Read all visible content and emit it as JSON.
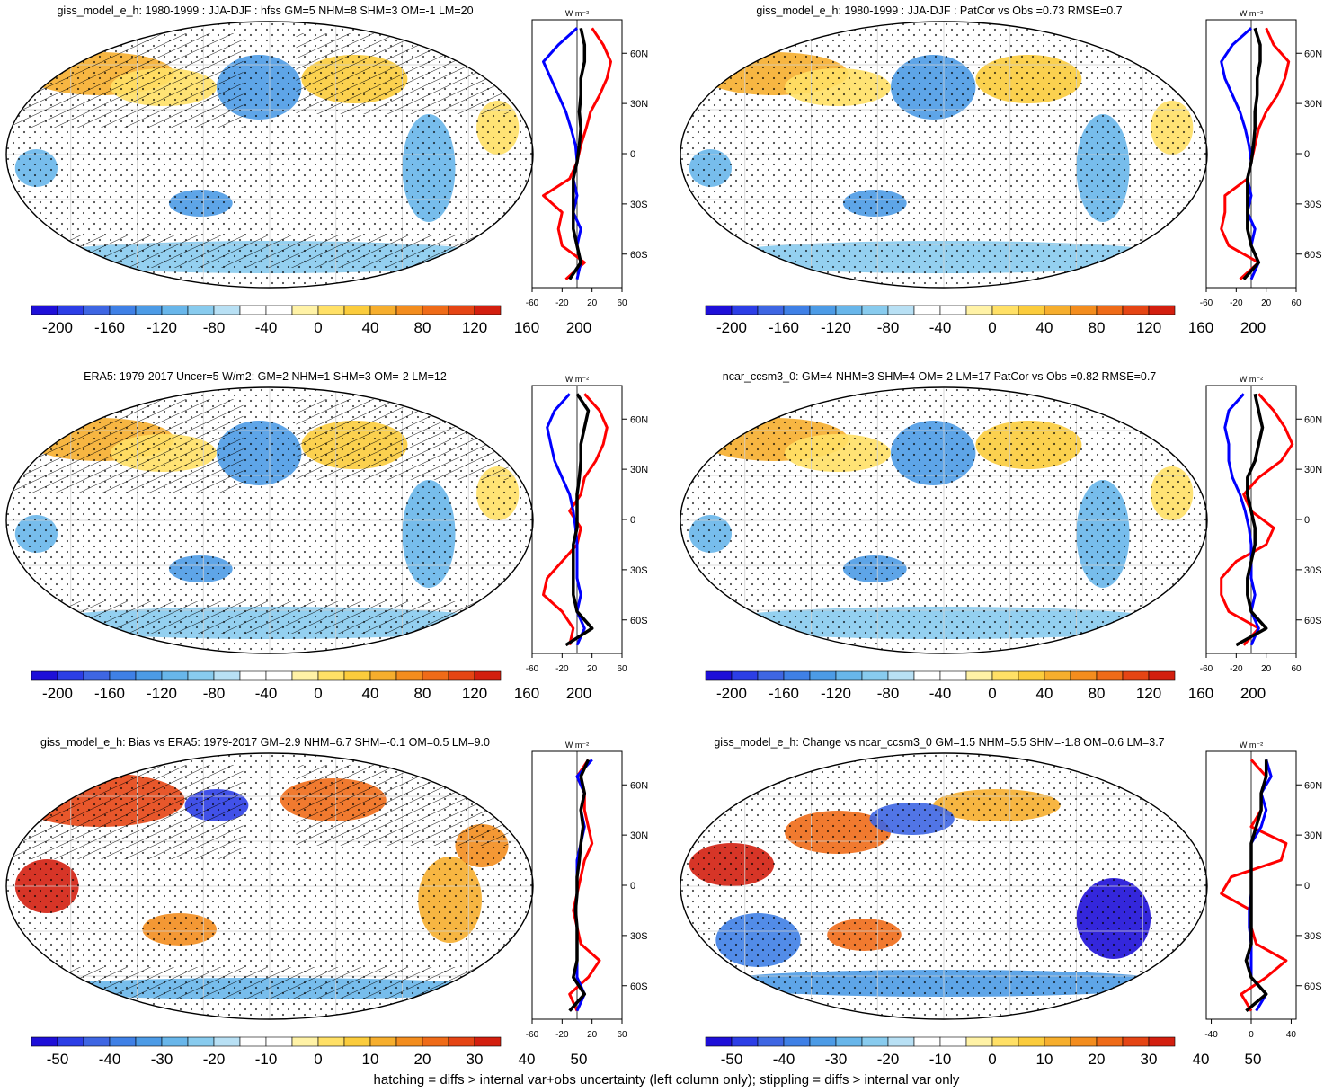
{
  "footer": "hatching = diffs > internal var+obs uncertainty (left column only); stippling = diffs > internal var only",
  "colorbar_colors": [
    "#1e0fd8",
    "#2c3ee6",
    "#3e66e3",
    "#3f80e6",
    "#4c9be6",
    "#68b6ea",
    "#88cbee",
    "#b8e0f4",
    "#ffffff",
    "#ffffff",
    "#fff2a6",
    "#ffe066",
    "#fbcc3c",
    "#f6ae2d",
    "#f38d1e",
    "#ef6b18",
    "#e54514",
    "#d31f0f"
  ],
  "profile_x_ticks": [
    "-60",
    "-20",
    "20",
    "60"
  ],
  "profile_x_ticks_alt": [
    "-40",
    "0",
    "40"
  ],
  "lat_ticks": [
    "60N",
    "30N",
    "0",
    "30S",
    "60S"
  ],
  "panels": [
    {
      "id": "a",
      "title": "giss_model_e_h: 1980-1999 : JJA-DJF : hfss GM=5 NHM=8 SHM=3 OM=-1 LM=20",
      "colorbar_labels": [
        "-200",
        "-160",
        "-120",
        "-80",
        "-40",
        "0",
        "40",
        "80",
        "120",
        "160",
        "200"
      ],
      "profile_unit": "W m⁻²",
      "hatching": true
    },
    {
      "id": "b",
      "title": "giss_model_e_h: 1980-1999 : JJA-DJF : PatCor vs Obs =0.73 RMSE=0.7",
      "colorbar_labels": [
        "-200",
        "-160",
        "-120",
        "-80",
        "-40",
        "0",
        "40",
        "80",
        "120",
        "160",
        "200"
      ],
      "profile_unit": "W m⁻²",
      "hatching": false
    },
    {
      "id": "c",
      "title": "ERA5: 1979-2017 Uncer=5 W/m2: GM=2 NHM=1 SHM=3 OM=-2 LM=12",
      "colorbar_labels": [
        "-200",
        "-160",
        "-120",
        "-80",
        "-40",
        "0",
        "40",
        "80",
        "120",
        "160",
        "200"
      ],
      "profile_unit": "W m⁻²",
      "hatching": true
    },
    {
      "id": "d",
      "title": "ncar_ccsm3_0: GM=4 NHM=3 SHM=4 OM=-2 LM=17 PatCor vs Obs =0.82 RMSE=0.7",
      "colorbar_labels": [
        "-200",
        "-160",
        "-120",
        "-80",
        "-40",
        "0",
        "40",
        "80",
        "120",
        "160",
        "200"
      ],
      "profile_unit": "W m⁻²",
      "hatching": false
    },
    {
      "id": "e",
      "title": "giss_model_e_h: Bias vs ERA5: 1979-2017 GM=2.9 NHM=6.7 SHM=-0.1 OM=0.5 LM=9.0",
      "colorbar_labels": [
        "-50",
        "-40",
        "-30",
        "-20",
        "-10",
        "0",
        "10",
        "20",
        "30",
        "40",
        "50"
      ],
      "profile_unit": "W m⁻²",
      "hatching": true
    },
    {
      "id": "f",
      "title": "giss_model_e_h: Change vs ncar_ccsm3_0 GM=1.5 NHM=5.5 SHM=-1.8 OM=0.6 LM=3.7",
      "colorbar_labels": [
        "-50",
        "-40",
        "-30",
        "-20",
        "-10",
        "0",
        "10",
        "20",
        "30",
        "40",
        "50"
      ],
      "profile_unit": "W m⁻²",
      "hatching": false
    }
  ],
  "chart_data": [
    {
      "type": "line",
      "panel": "a",
      "x_axis": "W m-2",
      "xlim": [
        -60,
        60
      ],
      "y_axis": "latitude",
      "ylim": [
        -80,
        80
      ],
      "lat": [
        -75,
        -65,
        -55,
        -45,
        -35,
        -25,
        -15,
        -5,
        5,
        15,
        25,
        35,
        45,
        55,
        65,
        75
      ],
      "series": [
        {
          "color": "#ff0000",
          "values": [
            -15,
            10,
            -20,
            -25,
            -20,
            -45,
            -10,
            0,
            5,
            12,
            18,
            30,
            40,
            45,
            35,
            20
          ]
        },
        {
          "color": "#0000ff",
          "values": [
            0,
            5,
            0,
            5,
            -5,
            0,
            -5,
            0,
            -2,
            -8,
            -15,
            -25,
            -35,
            -45,
            -25,
            0
          ]
        },
        {
          "color": "#000000",
          "values": [
            -10,
            5,
            0,
            -5,
            -5,
            -5,
            -5,
            0,
            3,
            5,
            3,
            5,
            5,
            10,
            10,
            5
          ]
        }
      ]
    },
    {
      "type": "line",
      "panel": "b",
      "x_axis": "W m-2",
      "xlim": [
        -60,
        60
      ],
      "y_axis": "latitude",
      "ylim": [
        -80,
        80
      ],
      "lat": [
        -75,
        -65,
        -55,
        -45,
        -35,
        -25,
        -15,
        -5,
        5,
        15,
        25,
        35,
        45,
        55,
        65,
        75
      ],
      "series": [
        {
          "color": "#ff0000",
          "values": [
            -15,
            10,
            -30,
            -40,
            -35,
            -35,
            -5,
            0,
            5,
            10,
            20,
            35,
            45,
            50,
            30,
            20
          ]
        },
        {
          "color": "#0000ff",
          "values": [
            0,
            10,
            0,
            5,
            -5,
            0,
            -5,
            0,
            -3,
            -8,
            -15,
            -25,
            -35,
            -40,
            -25,
            0
          ]
        },
        {
          "color": "#000000",
          "values": [
            -10,
            10,
            0,
            -5,
            -5,
            -5,
            -5,
            0,
            3,
            5,
            5,
            8,
            8,
            12,
            12,
            5
          ]
        }
      ]
    },
    {
      "type": "line",
      "panel": "c",
      "x_axis": "W m-2",
      "xlim": [
        -60,
        60
      ],
      "y_axis": "latitude",
      "ylim": [
        -80,
        80
      ],
      "lat": [
        -75,
        -65,
        -55,
        -45,
        -35,
        -25,
        -15,
        -5,
        5,
        15,
        25,
        35,
        45,
        55,
        65,
        75
      ],
      "series": [
        {
          "color": "#ff0000",
          "values": [
            -10,
            -5,
            -20,
            -45,
            -40,
            -20,
            0,
            5,
            -10,
            5,
            10,
            25,
            35,
            40,
            30,
            10
          ]
        },
        {
          "color": "#0000ff",
          "values": [
            0,
            10,
            0,
            5,
            0,
            0,
            0,
            -2,
            -5,
            -10,
            -20,
            -30,
            -35,
            -40,
            -30,
            -10
          ]
        },
        {
          "color": "#000000",
          "values": [
            -15,
            20,
            0,
            -5,
            -5,
            -5,
            -5,
            0,
            0,
            0,
            3,
            5,
            5,
            10,
            15,
            0
          ]
        }
      ]
    },
    {
      "type": "line",
      "panel": "d",
      "x_axis": "W m-2",
      "xlim": [
        -60,
        60
      ],
      "y_axis": "latitude",
      "ylim": [
        -80,
        80
      ],
      "lat": [
        -75,
        -65,
        -55,
        -45,
        -35,
        -25,
        -15,
        -5,
        5,
        15,
        25,
        35,
        45,
        55,
        65,
        75
      ],
      "series": [
        {
          "color": "#ff0000",
          "values": [
            -10,
            10,
            -30,
            -40,
            -40,
            -20,
            20,
            30,
            0,
            -10,
            10,
            40,
            55,
            45,
            30,
            10
          ]
        },
        {
          "color": "#0000ff",
          "values": [
            0,
            10,
            0,
            5,
            0,
            0,
            0,
            -3,
            -8,
            -15,
            -25,
            -30,
            -30,
            -35,
            -30,
            -10
          ]
        },
        {
          "color": "#000000",
          "values": [
            -20,
            20,
            0,
            -5,
            -5,
            0,
            5,
            5,
            0,
            -5,
            -5,
            5,
            10,
            15,
            10,
            5
          ]
        }
      ]
    },
    {
      "type": "line",
      "panel": "e",
      "x_axis": "W m-2",
      "xlim": [
        -60,
        60
      ],
      "y_axis": "latitude",
      "ylim": [
        -80,
        80
      ],
      "lat": [
        -75,
        -65,
        -55,
        -45,
        -35,
        -25,
        -15,
        -5,
        5,
        15,
        25,
        35,
        45,
        55,
        65,
        75
      ],
      "series": [
        {
          "color": "#ff0000",
          "values": [
            0,
            -10,
            15,
            30,
            5,
            0,
            -5,
            0,
            5,
            10,
            20,
            15,
            10,
            10,
            0,
            15
          ]
        },
        {
          "color": "#0000ff",
          "values": [
            0,
            10,
            0,
            0,
            0,
            0,
            -2,
            0,
            0,
            0,
            5,
            10,
            5,
            10,
            0,
            20
          ]
        },
        {
          "color": "#000000",
          "values": [
            -10,
            10,
            -5,
            0,
            0,
            0,
            -2,
            0,
            0,
            3,
            5,
            8,
            5,
            10,
            5,
            15
          ]
        }
      ]
    },
    {
      "type": "line",
      "panel": "f",
      "x_axis": "W m-2",
      "xlim": [
        -45,
        45
      ],
      "y_axis": "latitude",
      "ylim": [
        -80,
        80
      ],
      "lat": [
        -75,
        -65,
        -55,
        -45,
        -35,
        -25,
        -15,
        -5,
        5,
        15,
        25,
        35,
        45,
        55,
        65,
        75
      ],
      "series": [
        {
          "color": "#ff0000",
          "values": [
            0,
            -10,
            15,
            35,
            5,
            0,
            0,
            -30,
            -20,
            30,
            35,
            0,
            10,
            10,
            15,
            0
          ]
        },
        {
          "color": "#0000ff",
          "values": [
            5,
            15,
            0,
            0,
            0,
            -2,
            -2,
            0,
            0,
            0,
            0,
            10,
            15,
            10,
            20,
            15
          ]
        },
        {
          "color": "#000000",
          "values": [
            -5,
            15,
            0,
            -5,
            0,
            0,
            0,
            0,
            0,
            0,
            0,
            5,
            10,
            10,
            15,
            15
          ]
        }
      ]
    }
  ]
}
